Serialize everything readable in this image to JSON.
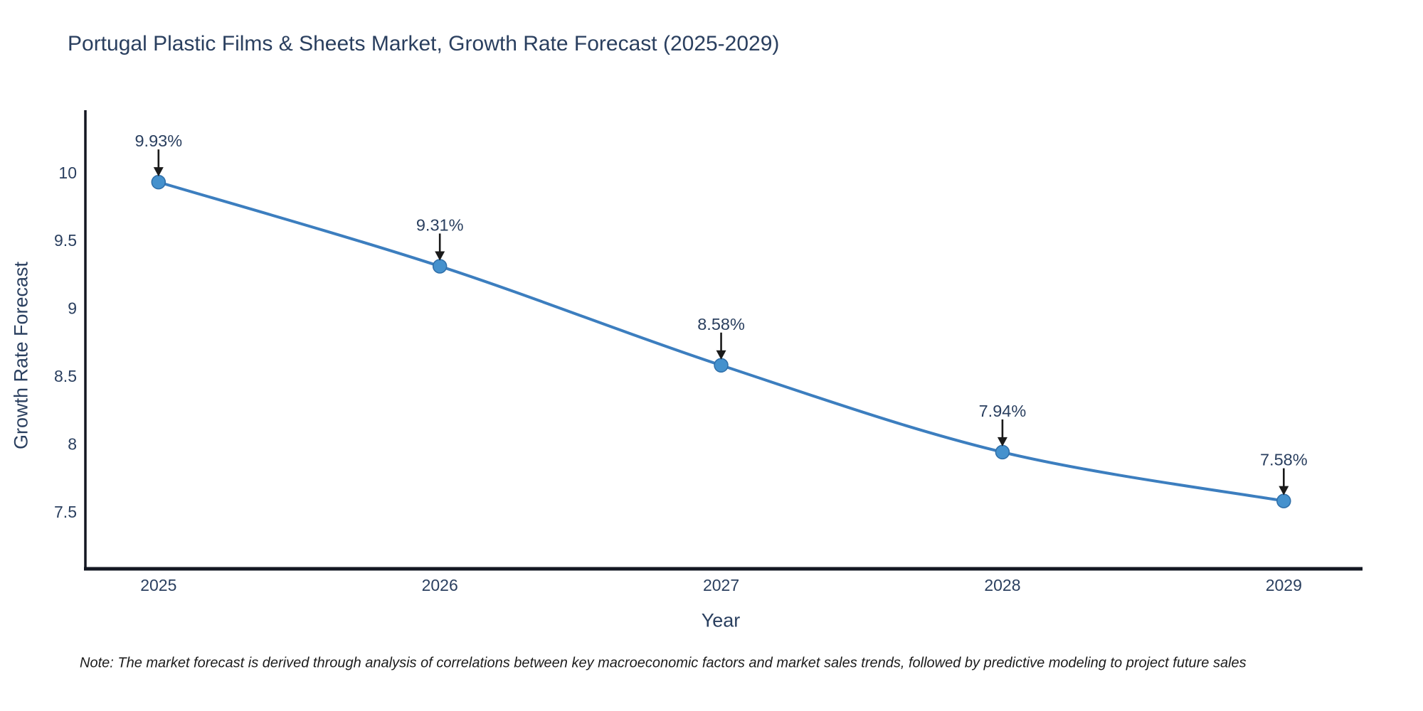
{
  "title": "Portugal Plastic Films & Sheets Market, Growth Rate Forecast (2025-2029)",
  "footnote": "Note: The market forecast is derived through analysis of correlations between key macroeconomic factors and market sales trends, followed by predictive modeling to project future sales",
  "chart_data": {
    "type": "line",
    "title": "Portugal Plastic Films & Sheets Market, Growth Rate Forecast (2025-2029)",
    "xlabel": "Year",
    "ylabel": "Growth Rate Forecast",
    "x": [
      2025,
      2026,
      2027,
      2028,
      2029
    ],
    "series": [
      {
        "name": "Growth Rate Forecast",
        "values": [
          9.93,
          9.31,
          8.58,
          7.94,
          7.58
        ]
      }
    ],
    "point_labels": [
      "9.93%",
      "9.31%",
      "8.58%",
      "7.94%",
      "7.58%"
    ],
    "x_ticks": [
      "2025",
      "2026",
      "2027",
      "2028",
      "2029"
    ],
    "y_ticks": [
      "7.5",
      "8",
      "8.5",
      "9",
      "9.5",
      "10"
    ],
    "xlim": [
      2024.74,
      2029.28
    ],
    "ylim": [
      7.08,
      10.46
    ],
    "grid": false,
    "legend": "none",
    "colors": {
      "line": "#3c7ebf",
      "marker_fill": "#4591cd",
      "marker_edge": "#2e6ea8",
      "axis_spine": "#131722",
      "text": "#2a3f5f",
      "annotation_arrow": "#1a1a1a"
    }
  }
}
